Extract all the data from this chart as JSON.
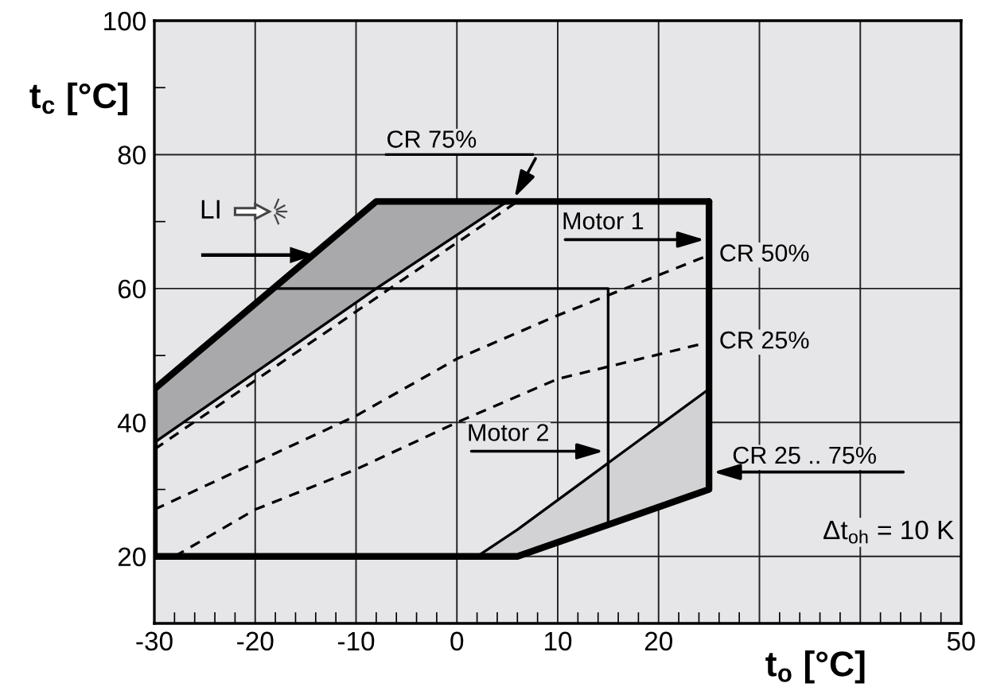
{
  "chart_data": {
    "type": "line",
    "xlabel": "t$_{o}$ [°C]",
    "ylabel": "t$_{c}$ [°C]",
    "xlim": [
      -30,
      50
    ],
    "ylim": [
      10,
      100
    ],
    "xticks": [
      -30,
      -20,
      -10,
      0,
      10,
      20,
      {
        "value": 30,
        "label": null
      },
      {
        "value": 40,
        "label": null
      },
      50
    ],
    "yticks": [
      20,
      40,
      60,
      80,
      100
    ],
    "grid": true,
    "legend": false,
    "marker": "none",
    "series": [
      {
        "color": "#000000",
        "line_style": "solid",
        "x": [
          -30,
          -8,
          5
        ],
        "values": [
          37,
          60,
          73
        ],
        "lower": [
          37,
          60,
          73
        ],
        "upper": [
          45,
          73,
          73
        ]
      },
      {
        "color": "#000000",
        "line_style": "solid",
        "x": [
          2,
          6,
          25
        ],
        "values": [
          20,
          24,
          45
        ],
        "lower": [
          20,
          20,
          30
        ],
        "upper": [
          20,
          24,
          45
        ]
      },
      {
        "color": "#000000",
        "line_style": "dashed",
        "x": [
          -30,
          6
        ],
        "values": [
          36,
          73
        ]
      },
      {
        "color": "#000000",
        "line_style": "dashed",
        "x": [
          -30,
          -20,
          -10,
          0,
          10,
          25
        ],
        "values": [
          27,
          34,
          41,
          49.5,
          56,
          65
        ]
      },
      {
        "color": "#000000",
        "line_style": "dashed",
        "x": [
          -28,
          -20,
          -10,
          0,
          10,
          25
        ],
        "values": [
          20,
          27,
          33,
          40,
          46.5,
          52
        ]
      },
      {
        "color": "#000000",
        "line_style": "solid",
        "x": [
          -18,
          15,
          15
        ],
        "values": [
          60,
          60,
          25
        ]
      },
      {
        "color": "#000000",
        "line_style": "solid",
        "x": [
          -30,
          -30,
          -8,
          25
        ],
        "values": [
          20,
          45,
          73,
          73
        ]
      },
      {
        "color": "#000000",
        "line_style": "solid",
        "x": [
          -30,
          6,
          25,
          25
        ],
        "values": [
          20,
          20,
          30,
          73
        ]
      }
    ],
    "annotations": [
      {
        "text": "CR 75%",
        "x": 5.5,
        "y": 73
      },
      "LI",
      {
        "text": "Motor 1",
        "x": 25,
        "y": 67.3
      },
      {
        "text": "CR 50%",
        "x": 25,
        "y": 65
      },
      {
        "text": "CR 25%",
        "x": 25,
        "y": 52
      },
      {
        "text": "Motor 2",
        "x": 15,
        "y": 35.7
      },
      {
        "text": "CR 25 .. 75%",
        "x": 25,
        "y": 32.6
      },
      "Δt$_{oh}$ = 10 K"
    ]
  }
}
